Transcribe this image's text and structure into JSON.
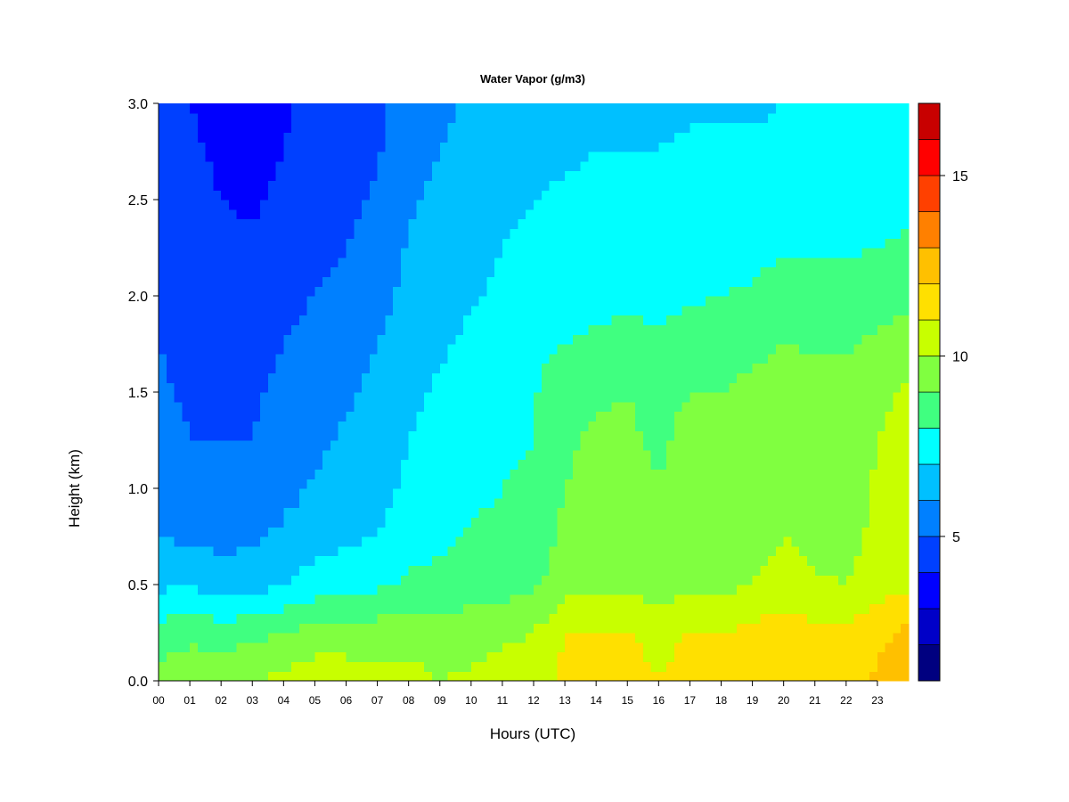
{
  "chart_data": {
    "type": "heatmap",
    "title": "Water Vapor (g/m3)",
    "xlabel": "Hours (UTC)",
    "ylabel": "Height (km)",
    "xlim": [
      0,
      24
    ],
    "ylim": [
      0.0,
      3.0
    ],
    "x_ticks": [
      "00",
      "01",
      "02",
      "03",
      "04",
      "05",
      "06",
      "07",
      "08",
      "09",
      "10",
      "11",
      "12",
      "13",
      "14",
      "15",
      "16",
      "17",
      "18",
      "19",
      "20",
      "21",
      "22",
      "23"
    ],
    "y_ticks": [
      "0.0",
      "0.5",
      "1.0",
      "1.5",
      "2.0",
      "2.5",
      "3.0"
    ],
    "colorbar": {
      "range": [
        1,
        17
      ],
      "ticks": [
        "5",
        "10",
        "15"
      ],
      "tick_values": [
        5,
        10,
        15
      ],
      "levels": [
        1,
        2,
        3,
        4,
        5,
        6,
        7,
        8,
        9,
        10,
        11,
        12,
        13,
        14,
        15,
        16,
        17
      ],
      "colors": [
        "#000080",
        "#0000C8",
        "#0000FF",
        "#0040FF",
        "#0080FF",
        "#00C0FF",
        "#00FFFF",
        "#40FF80",
        "#80FF40",
        "#C8FF00",
        "#FFE000",
        "#FFC000",
        "#FF8000",
        "#FF4000",
        "#FF0000",
        "#C80000",
        "#800000"
      ]
    },
    "heights_km": [
      0.0,
      0.25,
      0.5,
      0.75,
      1.0,
      1.25,
      1.5,
      1.75,
      2.0,
      2.25,
      2.5,
      2.75,
      3.0
    ],
    "hours": [
      0,
      1,
      2,
      3,
      4,
      5,
      6,
      7,
      8,
      9,
      10,
      11,
      12,
      13,
      14,
      15,
      16,
      17,
      18,
      19,
      20,
      21,
      22,
      23,
      24
    ],
    "values": [
      [
        9.5,
        9.8,
        9.7,
        10.0,
        10.3,
        10.6,
        10.5,
        10.3,
        10.3,
        10.0,
        10.2,
        10.4,
        10.6,
        11.3,
        11.4,
        11.3,
        11.0,
        11.3,
        11.3,
        11.6,
        12.0,
        11.5,
        11.4,
        12.2,
        12.6
      ],
      [
        8.4,
        8.7,
        8.5,
        8.7,
        9.0,
        9.4,
        9.5,
        9.5,
        9.6,
        9.5,
        9.6,
        9.8,
        10.0,
        11.0,
        11.1,
        11.0,
        10.8,
        11.0,
        11.0,
        11.3,
        11.6,
        11.3,
        11.2,
        11.8,
        12.2
      ],
      [
        6.8,
        7.0,
        6.5,
        6.6,
        7.0,
        7.4,
        7.6,
        7.8,
        8.2,
        8.3,
        8.5,
        8.6,
        8.8,
        9.6,
        9.8,
        9.8,
        9.5,
        9.8,
        9.8,
        10.0,
        10.3,
        10.1,
        10.0,
        10.5,
        10.8
      ],
      [
        6.0,
        5.8,
        5.7,
        5.8,
        6.2,
        6.6,
        6.8,
        7.0,
        7.6,
        7.8,
        8.1,
        8.2,
        8.4,
        9.2,
        9.5,
        9.5,
        9.2,
        9.4,
        9.4,
        9.7,
        10.0,
        9.8,
        9.7,
        10.2,
        10.5
      ],
      [
        5.6,
        5.2,
        5.2,
        5.3,
        5.7,
        6.1,
        6.4,
        6.7,
        7.2,
        7.5,
        7.8,
        8.0,
        8.2,
        9.0,
        9.2,
        9.3,
        9.0,
        9.3,
        9.3,
        9.6,
        9.9,
        9.7,
        9.6,
        10.1,
        10.4
      ],
      [
        5.3,
        5.0,
        5.0,
        5.0,
        5.4,
        5.8,
        6.1,
        6.4,
        7.0,
        7.3,
        7.6,
        7.8,
        8.0,
        8.9,
        9.1,
        9.1,
        8.9,
        9.2,
        9.2,
        9.5,
        9.8,
        9.6,
        9.5,
        10.0,
        10.3
      ],
      [
        5.1,
        4.9,
        4.9,
        4.9,
        5.2,
        5.6,
        5.9,
        6.2,
        6.8,
        7.1,
        7.4,
        7.7,
        7.9,
        8.7,
        8.9,
        9.0,
        8.8,
        9.0,
        9.0,
        9.3,
        9.6,
        9.5,
        9.4,
        9.8,
        10.1
      ],
      [
        5.0,
        4.8,
        4.8,
        4.7,
        5.0,
        5.4,
        5.7,
        6.0,
        6.6,
        6.9,
        7.2,
        7.5,
        7.7,
        8.0,
        8.2,
        8.3,
        8.2,
        8.4,
        8.5,
        8.7,
        9.0,
        8.9,
        8.9,
        9.2,
        9.5
      ],
      [
        4.9,
        4.6,
        4.5,
        4.4,
        4.7,
        5.0,
        5.3,
        5.6,
        6.3,
        6.6,
        6.9,
        7.2,
        7.4,
        7.6,
        7.7,
        7.8,
        7.7,
        7.9,
        8.0,
        8.1,
        8.3,
        8.3,
        8.3,
        8.5,
        8.8
      ],
      [
        4.8,
        4.4,
        4.2,
        4.1,
        4.4,
        4.7,
        5.0,
        5.3,
        6.1,
        6.4,
        6.7,
        7.0,
        7.2,
        7.3,
        7.4,
        7.5,
        7.5,
        7.6,
        7.7,
        7.8,
        7.9,
        7.9,
        7.9,
        8.0,
        8.2
      ],
      [
        4.7,
        4.2,
        4.0,
        3.9,
        4.2,
        4.5,
        4.8,
        5.1,
        5.9,
        6.2,
        6.5,
        6.8,
        7.0,
        7.1,
        7.2,
        7.2,
        7.2,
        7.3,
        7.3,
        7.4,
        7.5,
        7.5,
        7.5,
        7.6,
        7.7
      ],
      [
        4.5,
        4.1,
        3.9,
        3.7,
        4.0,
        4.3,
        4.6,
        4.9,
        5.6,
        6.0,
        6.3,
        6.6,
        6.8,
        6.9,
        7.0,
        7.0,
        7.0,
        7.1,
        7.1,
        7.1,
        7.2,
        7.2,
        7.2,
        7.3,
        7.4
      ],
      [
        4.3,
        4.0,
        3.8,
        3.6,
        3.9,
        4.2,
        4.5,
        4.8,
        5.4,
        5.8,
        6.1,
        6.4,
        6.7,
        6.8,
        6.8,
        6.8,
        6.9,
        6.9,
        6.9,
        6.9,
        7.0,
        7.0,
        7.0,
        7.1,
        7.2
      ]
    ]
  }
}
